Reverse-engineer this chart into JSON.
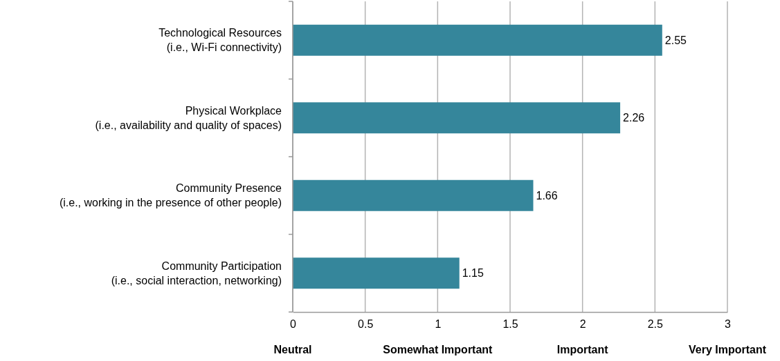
{
  "chart_data": {
    "type": "bar",
    "orientation": "horizontal",
    "categories": [
      "Technological Resources\n(i.e., Wi-Fi connectivity)",
      "Physical Workplace\n(i.e., availability and quality of spaces)",
      "Community Presence\n(i.e., working in the presence of other people)",
      "Community Participation\n(i.e., social interaction, networking)"
    ],
    "values": [
      2.55,
      2.26,
      1.66,
      1.15
    ],
    "color": "#35869b",
    "xlim": [
      0,
      3
    ],
    "xticks": [
      0,
      0.5,
      1,
      1.5,
      2,
      2.5,
      3
    ],
    "grid": "x",
    "data_labels": true,
    "annotations": [
      "Neutral",
      "Somewhat Important",
      "Important",
      "Very Important"
    ]
  }
}
